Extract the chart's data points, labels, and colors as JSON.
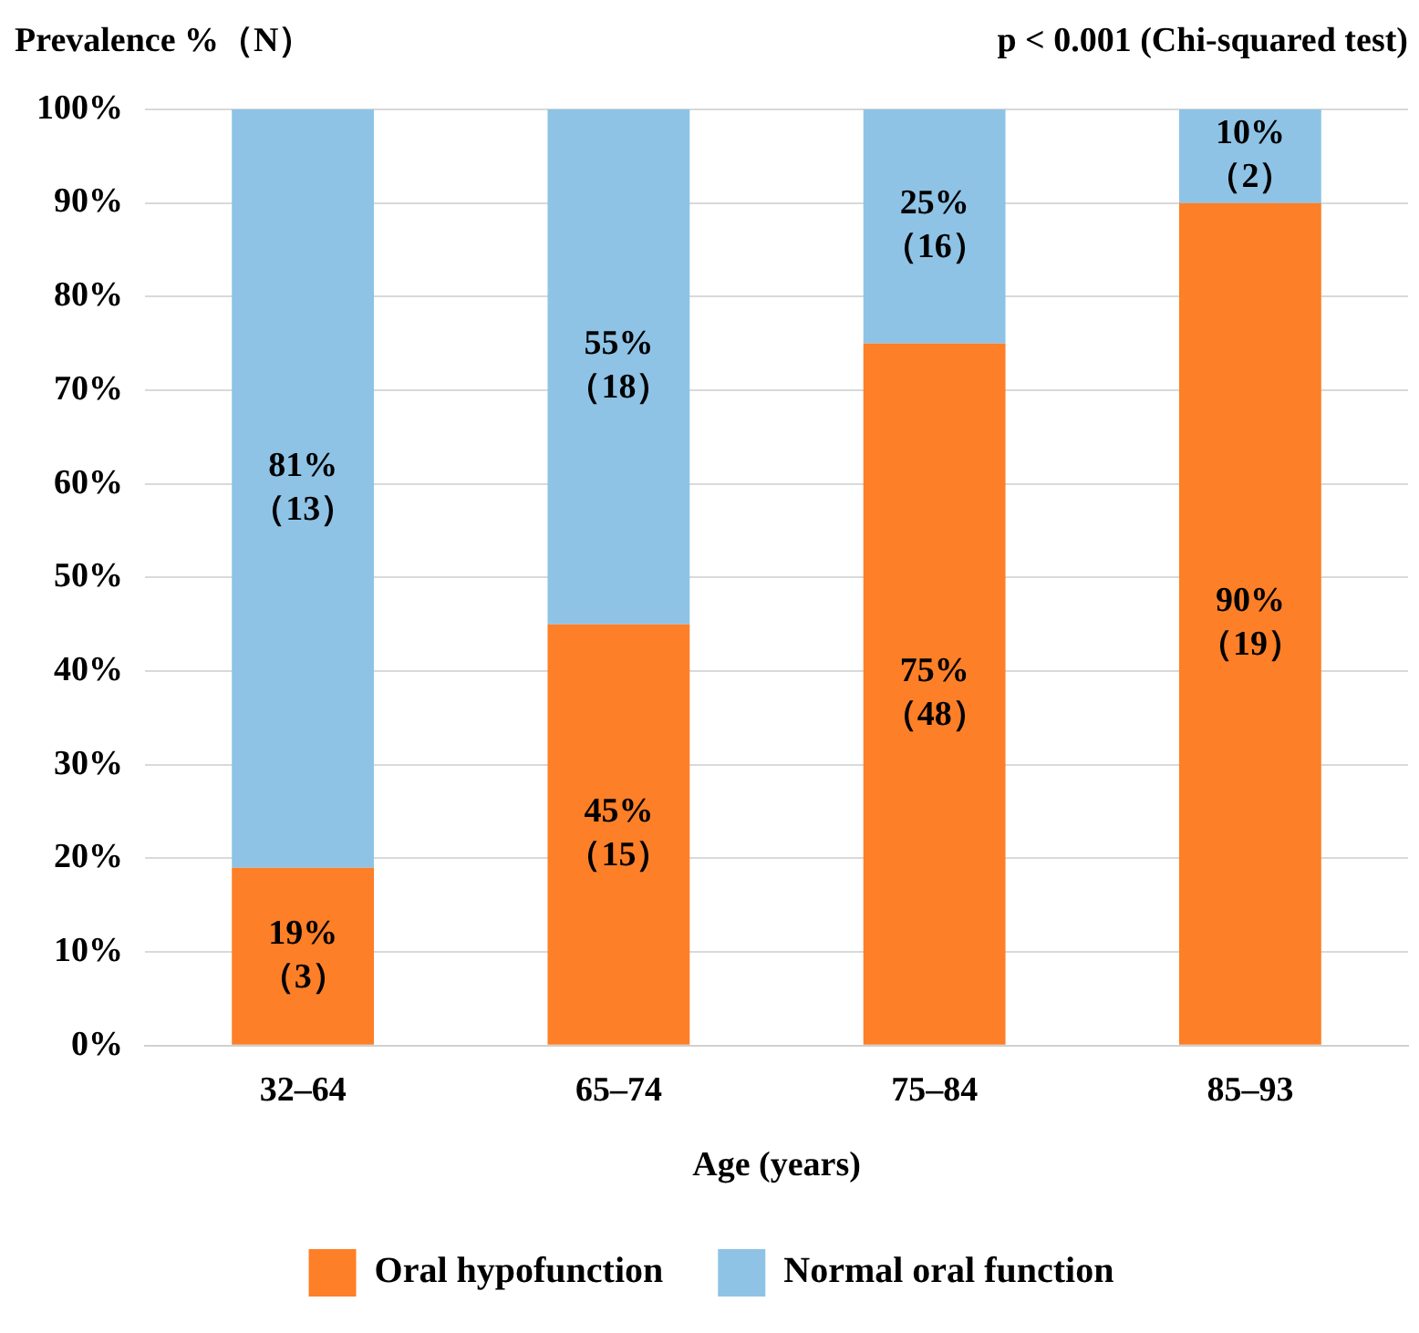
{
  "chart_data": {
    "type": "bar",
    "stacked": true,
    "ylabel": "Prevalence %（N）",
    "xlabel": "Age (years)",
    "annotations": [
      "p < 0.001 (Chi-squared test)"
    ],
    "categories": [
      "32–64",
      "65–74",
      "75–84",
      "85–93"
    ],
    "series": [
      {
        "name": "Oral hypofunction",
        "color": "#fd7f27",
        "values": [
          19,
          45,
          75,
          90
        ],
        "value_labels": [
          "19%\n（3）",
          "45%\n（15）",
          "75%\n（48）",
          "90%\n（19）"
        ]
      },
      {
        "name": "Normal oral function",
        "color": "#8ec3e6",
        "values": [
          81,
          55,
          25,
          10
        ],
        "value_labels": [
          "81%\n（13）",
          "55%\n（18）",
          "25%\n（16）",
          "10%\n（2）"
        ]
      }
    ],
    "ylim": [
      0,
      100
    ],
    "yticks": [
      {
        "value": 0,
        "label": "0%"
      },
      {
        "value": 10,
        "label": "10%"
      },
      {
        "value": 20,
        "label": "20%"
      },
      {
        "value": 30,
        "label": "30%"
      },
      {
        "value": 40,
        "label": "40%"
      },
      {
        "value": 50,
        "label": "50%"
      },
      {
        "value": 60,
        "label": "60%"
      },
      {
        "value": 70,
        "label": "70%"
      },
      {
        "value": 80,
        "label": "80%"
      },
      {
        "value": 90,
        "label": "90%"
      },
      {
        "value": 100,
        "label": "100%"
      }
    ],
    "grid": "y",
    "legend": "bottom"
  }
}
